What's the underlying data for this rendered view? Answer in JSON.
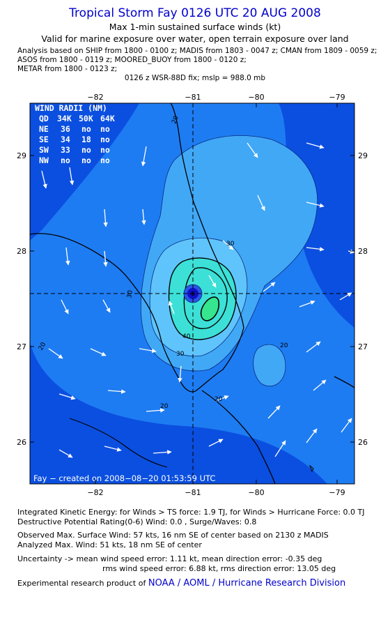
{
  "header": {
    "title": "Tropical Storm Fay 0126 UTC 20 AUG 2008",
    "subtitle1": "Max 1-min sustained surface winds (kt)",
    "subtitle2": "Valid for marine exposure over water, open terrain exposure over land",
    "sources": [
      "Analysis based on  SHIP from 1800 - 0100 z;  MADIS from 1803 - 0047 z;  CMAN from 1809 - 0059 z;",
      "ASOS from 1800 - 0119 z;  MOORED_BUOY from 1800 - 0120 z;",
      "METAR from 1800 - 0123 z;"
    ],
    "fix": "0126 z WSR-88D fix; mslp = 988.0 mb"
  },
  "map": {
    "lon_ticks": [
      "−82",
      "−81",
      "−80",
      "−79"
    ],
    "lat_ticks": [
      "29",
      "28",
      "27",
      "26"
    ],
    "contour_labels": [
      "20",
      "30",
      "30",
      "20",
      "20",
      "20",
      "30",
      "20",
      "40"
    ],
    "wind_radii": {
      "title": "WIND RADII (NM)",
      "header": [
        "QD",
        "34K",
        "50K",
        "64K"
      ],
      "rows": [
        [
          "NE",
          "36",
          "no",
          "no"
        ],
        [
          "SE",
          "34",
          "18",
          "no"
        ],
        [
          "SW",
          "33",
          "no",
          "no"
        ],
        [
          "NW",
          "no",
          "no",
          "no"
        ]
      ]
    },
    "created": "Fay − created on 2008−08−20 01:53:59 UTC",
    "colors": {
      "ocean_dark": "#0b4fe0",
      "band_mid": "#1e7cf2",
      "band_light": "#41a8f6",
      "band_lighter": "#5fc4fb",
      "core_cyan": "#3ce0d6",
      "core_green": "#35e68e",
      "center_blue": "#1010c8"
    }
  },
  "footer": {
    "ike": "Integrated Kinetic Energy:  for Winds > TS force: 1.9 TJ,  for Winds > Hurricane Force: 0.0 TJ",
    "destructive": "Destructive Potential Rating(0-6)   Wind: 0.0 , Surge/Waves: 0.8",
    "observed": "Observed Max. Surface Wind: 57 kts, 16 nm SE of center based on 2130 z MADIS",
    "analyzed": "Analyzed Max. Wind: 51 kts, 18 nm SE of center",
    "uncert1": "Uncertainty -> mean wind speed error: 1.11 kt,   mean direction error:  -0.35 deg",
    "uncert2": "rms wind speed error: 6.88 kt,   rms direction error: 13.05 deg",
    "credit_prefix": "Experimental research product of ",
    "credit_org": "NOAA / AOML / Hurricane Research Division"
  }
}
